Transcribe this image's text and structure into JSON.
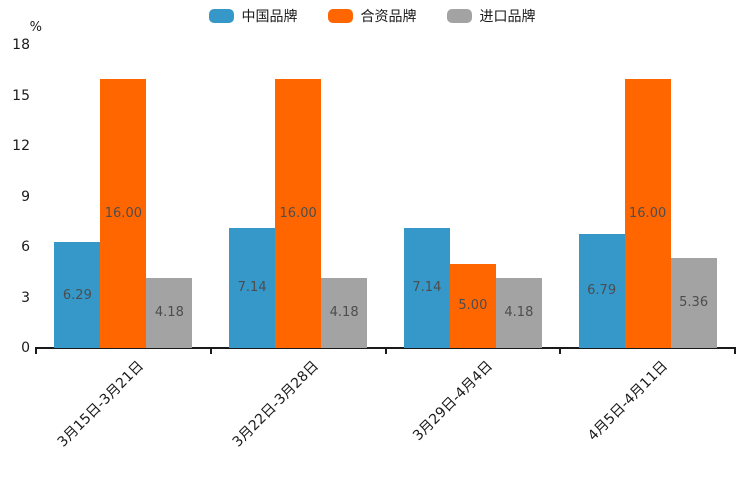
{
  "chart_data": {
    "type": "bar",
    "title": "",
    "categories": [
      "3月15日-3月21日",
      "3月22日-3月28日",
      "3月29日-4月4日",
      "4月5日-4月11日"
    ],
    "series": [
      {
        "name": "中国品牌",
        "color": "#3598c9",
        "values": [
          6.29,
          7.14,
          7.14,
          6.79
        ],
        "labels": [
          "6.29",
          "7.14",
          "7.14",
          "6.79"
        ]
      },
      {
        "name": "合资品牌",
        "color": "#ff6600",
        "values": [
          16.0,
          16.0,
          5.0,
          16.0
        ],
        "labels": [
          "16.00",
          "16.00",
          "5.00",
          "16.00"
        ]
      },
      {
        "name": "进口品牌",
        "color": "#a3a3a3",
        "values": [
          4.18,
          4.18,
          4.18,
          5.36
        ],
        "labels": [
          "4.18",
          "4.18",
          "4.18",
          "5.36"
        ]
      }
    ],
    "xlabel": "",
    "ylabel": "%",
    "yticks": [
      0,
      3,
      6,
      9,
      12,
      15,
      18
    ],
    "ylim": [
      0,
      18
    ],
    "legend_position": "top",
    "grid": false,
    "value_label_color": "#4d4d4d",
    "axis_color": "#1a1a1a"
  }
}
